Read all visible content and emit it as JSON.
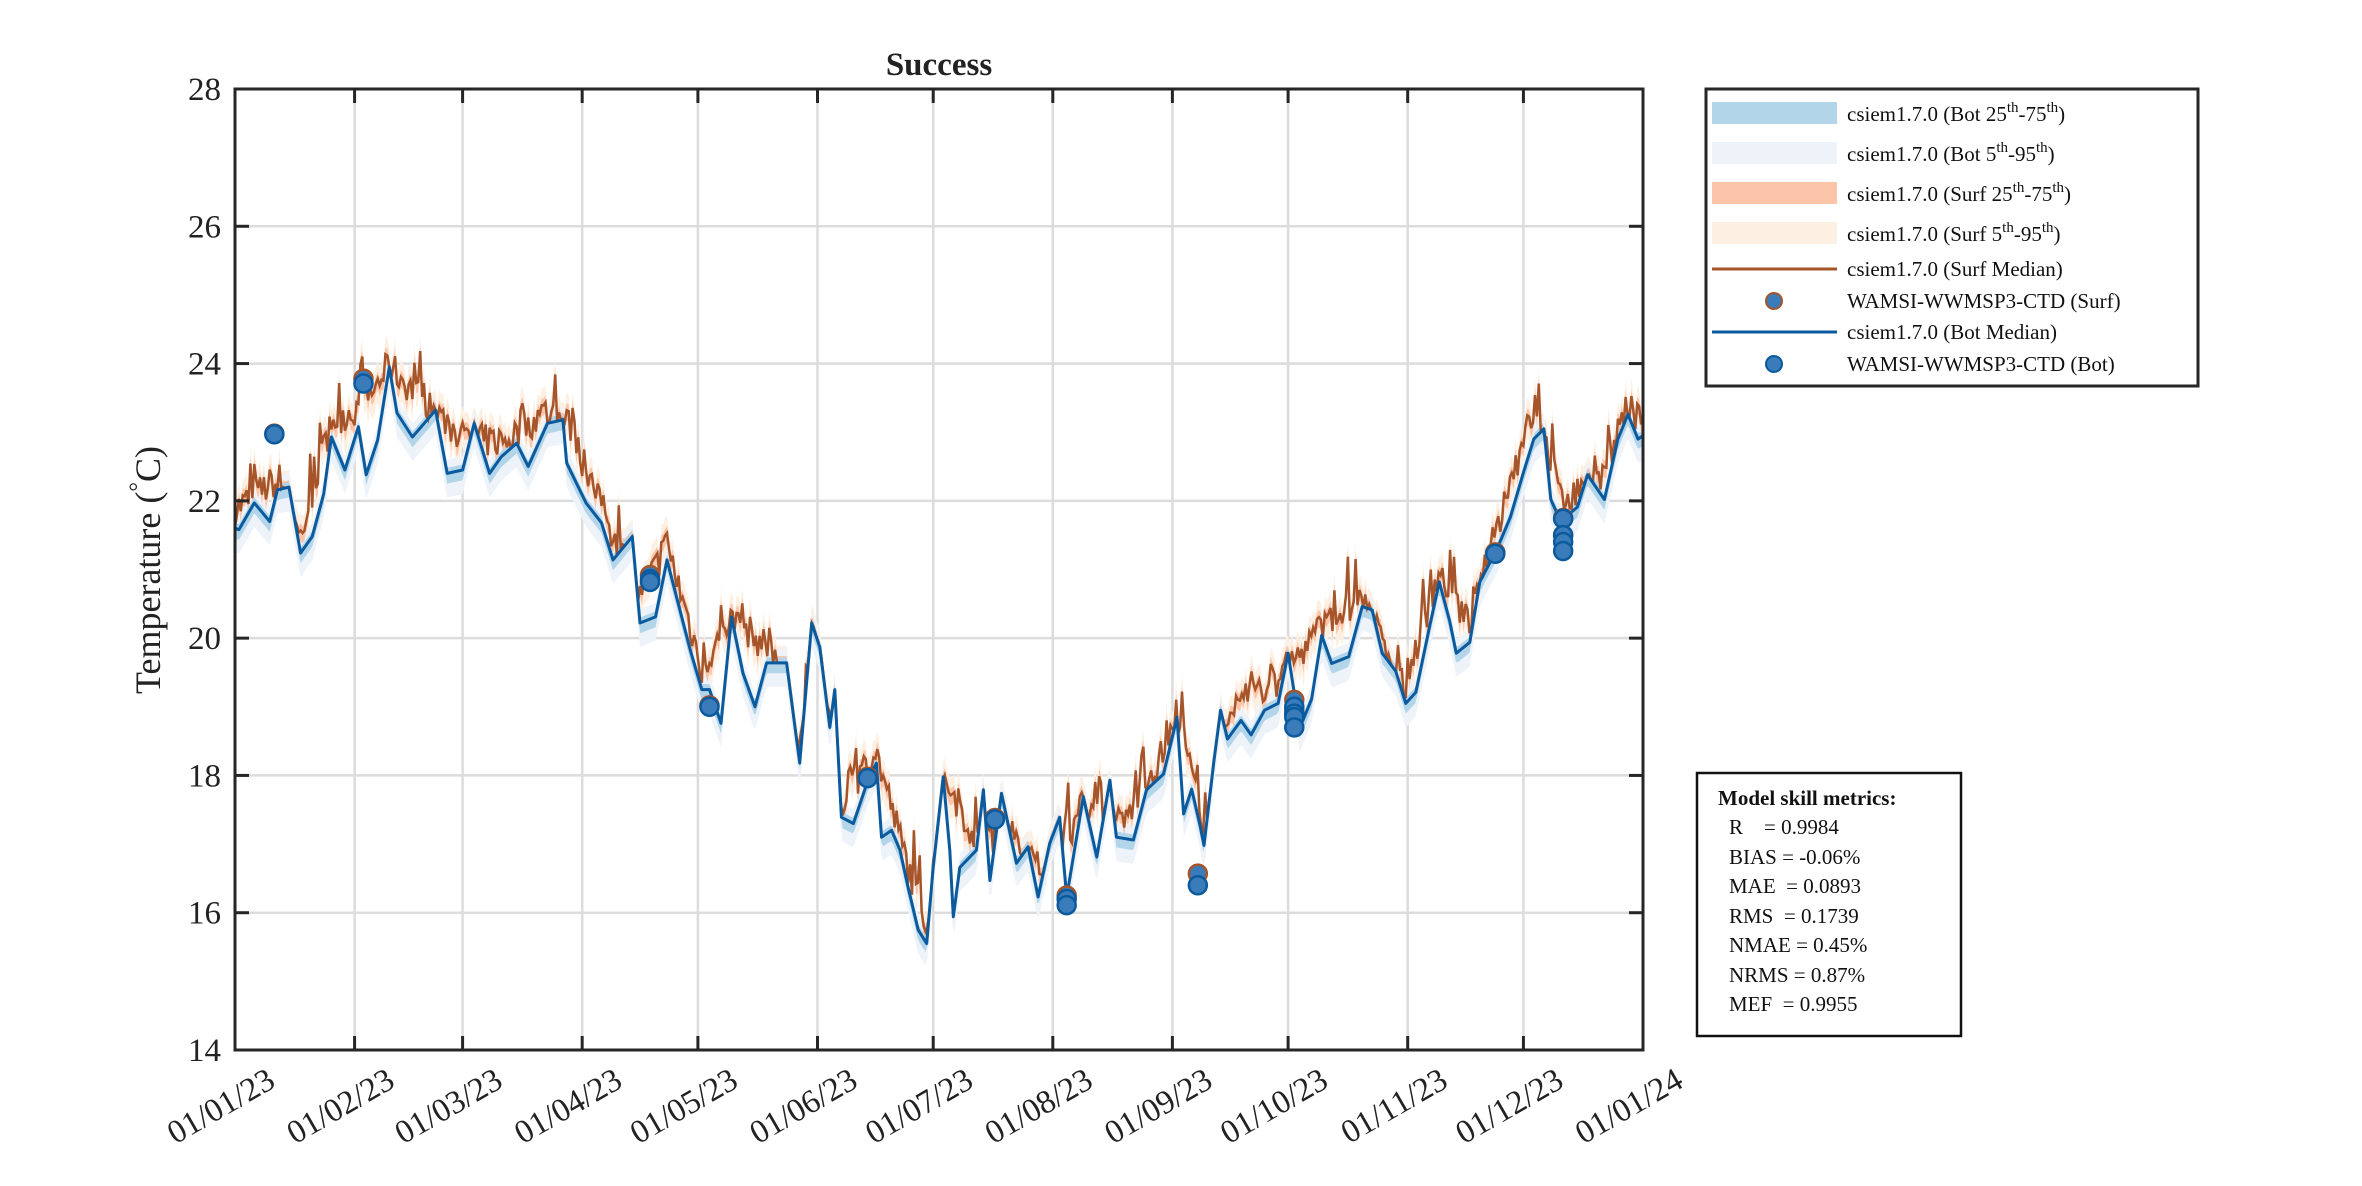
{
  "chart_data": {
    "type": "line",
    "title": "Success",
    "ylabel": {
      "pre": "Temperature (",
      "sup": "°",
      "post": "C)"
    },
    "xlabel": "",
    "ylim": [
      14,
      28
    ],
    "yticks": [
      "14",
      "16",
      "18",
      "20",
      "22",
      "24",
      "26",
      "28"
    ],
    "xlim": [
      "2023-01-01",
      "2024-01-01"
    ],
    "xticks": [
      "01/01/23",
      "01/02/23",
      "01/03/23",
      "01/04/23",
      "01/05/23",
      "01/06/23",
      "01/07/23",
      "01/08/23",
      "01/09/23",
      "01/10/23",
      "01/11/23",
      "01/12/23",
      "01/01/24"
    ],
    "xtick_dates": [
      "2023-01-01",
      "2023-02-01",
      "2023-03-01",
      "2023-04-01",
      "2023-05-01",
      "2023-06-01",
      "2023-07-01",
      "2023-08-01",
      "2023-09-01",
      "2023-10-01",
      "2023-11-01",
      "2023-12-01",
      "2024-01-01"
    ],
    "grid": true,
    "legend_position": "outside-top-right",
    "colors": {
      "bot_25_75": "#B2D5EA",
      "bot_5_95": "#EEF3FA",
      "surf_25_75": "#FCC5AA",
      "surf_5_95": "#FDF0E2",
      "surf_median": "#A6542A",
      "bot_median": "#0B5A9E",
      "obs_fill": "#3A7BBA"
    },
    "series": {
      "bot_median": {
        "name": "csiem1.7.0 (Bot Median)",
        "day_of_year": [
          0,
          1,
          5,
          9,
          11,
          14,
          17,
          20,
          23,
          25,
          28.5,
          32,
          34,
          37,
          40,
          42,
          46,
          52,
          55,
          59,
          62,
          66,
          69,
          73,
          76,
          81,
          85,
          86,
          91,
          95,
          98,
          103,
          105,
          109,
          112,
          118,
          121,
          123,
          126,
          128.7,
          131.7,
          134.8,
          137.8,
          143,
          146.4,
          149.5,
          151.6,
          154.2,
          155.5,
          157.2,
          160.3,
          164.1,
          166.3,
          167.6,
          170.2,
          172.4,
          174.5,
          177.1,
          179.3,
          181,
          183.6,
          185.3,
          186.2,
          187.9,
          192.2,
          194,
          195.7,
          198.7,
          202.6,
          205.6,
          208.2,
          211.2,
          213.8,
          215.6,
          219.9,
          223.4,
          226.8,
          228.5,
          232.9,
          236.3,
          240.7,
          244.2,
          245.9,
          248,
          250.3,
          251.2,
          253.8,
          255.5,
          257.3,
          260.8,
          263.4,
          266.9,
          270.4,
          273,
          276,
          279.1,
          281.7,
          284.3,
          288.7,
          292.2,
          294.8,
          297.4,
          300.9,
          303.5,
          306.1,
          309.6,
          312.2,
          314.9,
          316.6,
          320.1,
          322.7,
          327.1,
          330.6,
          334.1,
          336.7,
          339.3,
          341.1,
          343.7,
          348,
          350.6,
          355,
          358.5,
          361.1,
          363.7,
          365
        ],
        "temperature": [
          21.6,
          21.58,
          21.97,
          21.7,
          22.16,
          22.2,
          21.24,
          21.48,
          22.1,
          22.93,
          22.45,
          23.08,
          22.38,
          22.89,
          23.95,
          23.28,
          22.93,
          23.32,
          22.4,
          22.45,
          23.13,
          22.4,
          22.64,
          22.84,
          22.5,
          23.13,
          23.18,
          22.55,
          21.97,
          21.68,
          21.14,
          21.48,
          20.22,
          20.31,
          21.14,
          19.83,
          19.25,
          19.25,
          18.76,
          20.31,
          19.49,
          19.0,
          19.64,
          19.64,
          18.18,
          20.22,
          19.87,
          18.7,
          19.25,
          17.39,
          17.3,
          17.93,
          18.18,
          17.1,
          17.2,
          16.91,
          16.37,
          15.75,
          15.55,
          16.66,
          17.98,
          16.91,
          15.94,
          16.66,
          16.91,
          17.79,
          16.47,
          17.74,
          16.72,
          16.96,
          16.23,
          17.01,
          17.39,
          16.23,
          17.69,
          16.81,
          17.93,
          17.1,
          17.06,
          17.79,
          18.02,
          18.85,
          17.44,
          17.8,
          17.24,
          16.98,
          18.22,
          18.95,
          18.53,
          18.8,
          18.59,
          18.95,
          19.05,
          19.78,
          18.69,
          19.11,
          20.04,
          19.63,
          19.73,
          20.46,
          20.41,
          19.78,
          19.52,
          19.05,
          19.21,
          20.15,
          20.82,
          20.25,
          19.78,
          19.94,
          20.82,
          21.29,
          21.76,
          22.43,
          22.9,
          23.05,
          22.02,
          21.7,
          21.91,
          22.38,
          22.02,
          22.9,
          23.26,
          22.9,
          22.95
        ]
      },
      "surf_median": {
        "name": "csiem1.7.0 (Surf Median)",
        "day_of_year": [
          0,
          10,
          17,
          25,
          33,
          40,
          50,
          60,
          70,
          80,
          86,
          95,
          105,
          112,
          121,
          129,
          140,
          147,
          150,
          157,
          166,
          175,
          180,
          184,
          192,
          200,
          210,
          220,
          230,
          240,
          245,
          251,
          260,
          270,
          282,
          292,
          303,
          312,
          320,
          330,
          337,
          344,
          355,
          361,
          365
        ],
        "temperature": [
          21.9,
          22.3,
          21.5,
          23.2,
          23.4,
          24.0,
          23.4,
          22.9,
          22.9,
          23.3,
          23.2,
          21.9,
          20.6,
          21.4,
          19.6,
          20.3,
          19.8,
          18.4,
          20.2,
          17.6,
          18.4,
          16.6,
          15.8,
          18.0,
          17.1,
          17.2,
          16.5,
          17.6,
          17.3,
          18.3,
          18.8,
          17.3,
          19.1,
          19.4,
          20.2,
          20.6,
          19.3,
          21.0,
          20.2,
          22.2,
          23.4,
          22.0,
          22.4,
          23.4,
          23.2
        ]
      },
      "obs_surf": {
        "name": "WAMSI-WWMSP3-CTD (Surf)",
        "day_of_year": [
          10.2,
          33.3,
          107.6,
          123,
          164,
          197,
          215.6,
          249.6,
          274.6,
          274.6,
          326.7,
          344.3,
          344.3
        ],
        "temperature": [
          22.98,
          23.78,
          20.92,
          19.02,
          17.98,
          17.38,
          16.25,
          16.57,
          19.1,
          18.95,
          21.25,
          21.75,
          21.5
        ]
      },
      "obs_bot": {
        "name": "WAMSI-WWMSP3-CTD (Bot)",
        "day_of_year": [
          10.2,
          33.3,
          107.6,
          107.6,
          123,
          164,
          197,
          215.6,
          215.6,
          249.6,
          274.6,
          274.6,
          274.6,
          274.6,
          326.7,
          344.3,
          344.3,
          344.3,
          344.3
        ],
        "temperature": [
          22.97,
          23.71,
          20.86,
          20.82,
          19.0,
          17.96,
          17.36,
          16.2,
          16.11,
          16.4,
          19.0,
          18.9,
          18.85,
          18.7,
          21.23,
          21.74,
          21.5,
          21.4,
          21.27
        ]
      }
    }
  },
  "legend": {
    "items": [
      {
        "pre": "csiem1.7.0 (Bot 25",
        "sup1": "th",
        "mid": "-75",
        "sup2": "th",
        "post": ")"
      },
      {
        "pre": "csiem1.7.0 (Bot 5",
        "sup1": "th",
        "mid": "-95",
        "sup2": "th",
        "post": ")"
      },
      {
        "pre": "csiem1.7.0 (Surf 25",
        "sup1": "th",
        "mid": "-75",
        "sup2": "th",
        "post": ")"
      },
      {
        "pre": "csiem1.7.0 (Surf 5",
        "sup1": "th",
        "mid": "-95",
        "sup2": "th",
        "post": ")"
      },
      {
        "label": "csiem1.7.0 (Surf Median)"
      },
      {
        "label": "WAMSI-WWMSP3-CTD (Surf)"
      },
      {
        "label": "csiem1.7.0 (Bot Median)"
      },
      {
        "label": "WAMSI-WWMSP3-CTD (Bot)"
      }
    ]
  },
  "metrics": {
    "title": "Model skill metrics:",
    "lines": [
      "R    = 0.9984",
      "BIAS = -0.06%",
      "MAE  = 0.0893",
      "RMS  = 0.1739",
      "NMAE = 0.45%",
      "NRMS = 0.87%",
      "MEF  = 0.9955"
    ]
  }
}
